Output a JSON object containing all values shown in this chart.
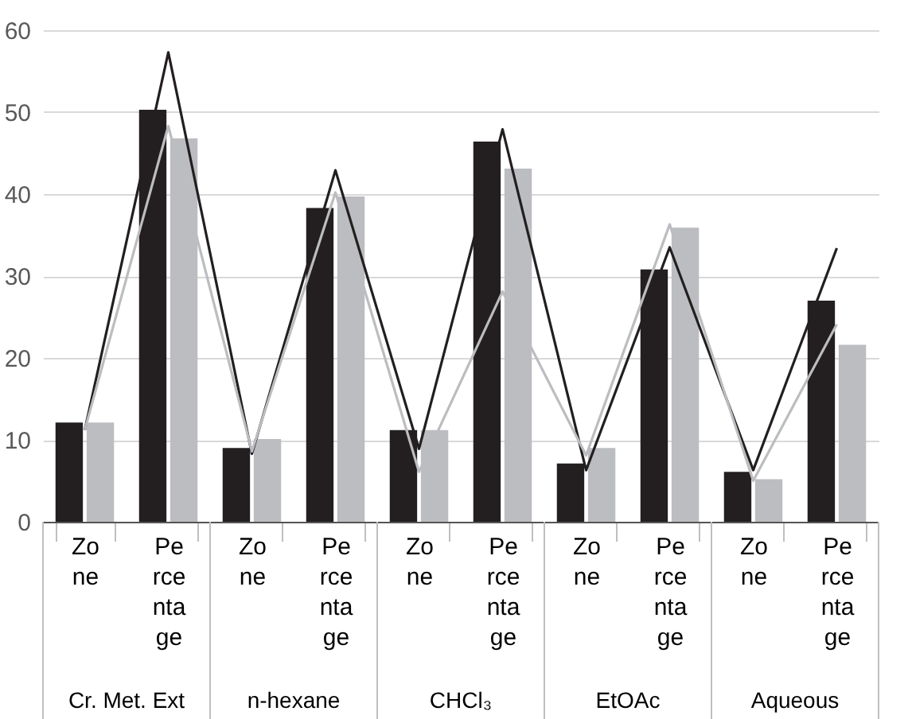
{
  "chart_data": {
    "type": "bar",
    "categories": [
      "Zone",
      "Percentage",
      "Zone",
      "Percentage",
      "Zone",
      "Percentage",
      "Zone",
      "Percentage",
      "Zone",
      "Percentage"
    ],
    "series": [
      {
        "color": "#231f20",
        "values": [
          12.1,
          50.3,
          9.0,
          38.3,
          11.2,
          46.4,
          7.1,
          30.8,
          6.1,
          27.0
        ]
      },
      {
        "color": "#bcbdc0",
        "values": [
          12.1,
          46.8,
          10.1,
          39.7,
          11.2,
          43.1,
          9.0,
          35.9,
          5.2,
          21.6
        ]
      },
      {
        "type": "line",
        "color": "#231f20",
        "values": [
          11.2,
          57.3,
          8.3,
          42.9,
          8.9,
          47.9,
          6.3,
          33.5,
          6.3,
          33.4
        ]
      },
      {
        "type": "line",
        "color": "#bcbdc0",
        "values": [
          11.2,
          48.3,
          8.6,
          40.2,
          6.1,
          28.1,
          8.1,
          36.3,
          5.0,
          24.1
        ]
      }
    ],
    "ylim": [
      0,
      60
    ],
    "yticks": [
      0,
      10,
      20,
      30,
      40,
      50,
      60
    ],
    "grid": "y",
    "annotations": [
      "Cr. Met. Ext",
      "n-hexane",
      "CHCl₃",
      "EtOAc",
      "Aqueous"
    ]
  }
}
